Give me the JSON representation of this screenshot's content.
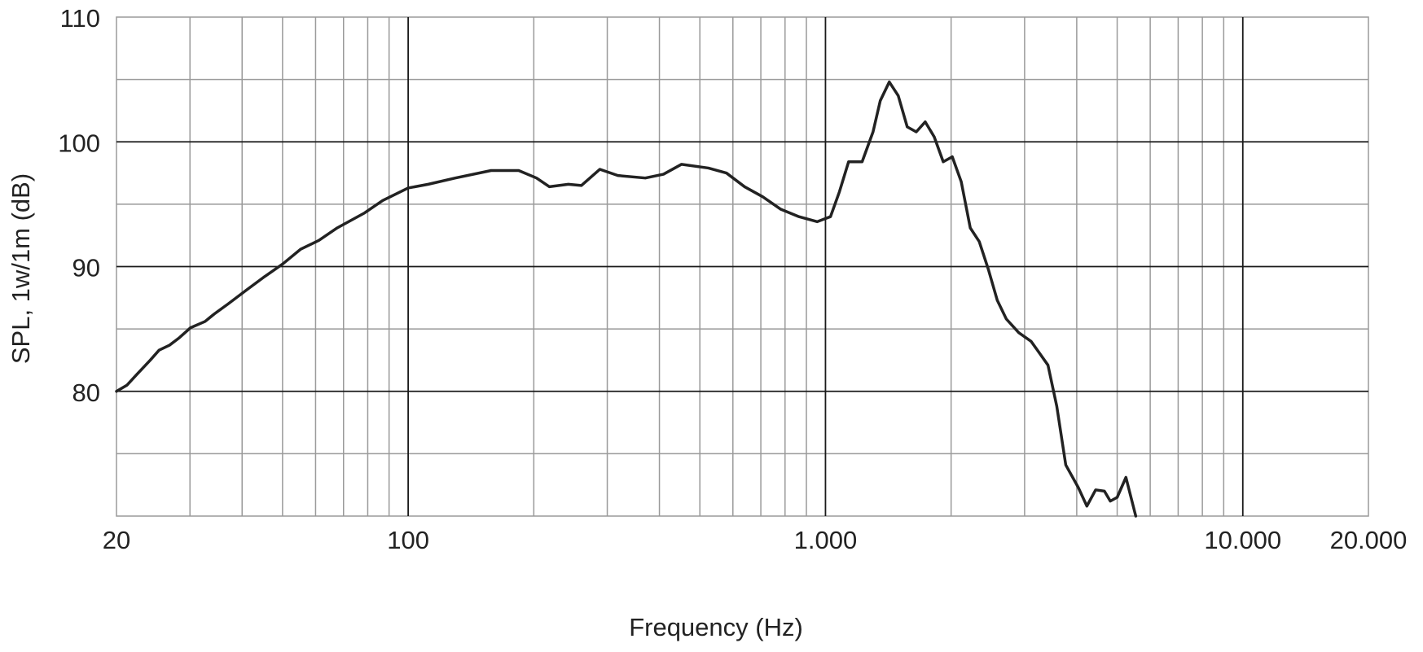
{
  "chart_data": {
    "type": "line",
    "xlabel": "Frequency (Hz)",
    "ylabel": "SPL, 1w/1m (dB)",
    "xscale": "log",
    "xlim": [
      20,
      20000
    ],
    "ylim": [
      70,
      110
    ],
    "xticks": [
      20,
      100,
      {
        "value": 1000,
        "label": "1.000"
      },
      {
        "value": 10000,
        "label": "10.000"
      },
      {
        "value": 20000,
        "label": "20.000"
      }
    ],
    "yticks": [
      80,
      90,
      100,
      110
    ],
    "xminor": [
      30,
      40,
      50,
      60,
      70,
      80,
      90,
      200,
      300,
      400,
      500,
      600,
      700,
      800,
      900,
      2000,
      3000,
      4000,
      5000,
      6000,
      7000,
      8000,
      9000
    ],
    "yminor": [
      75,
      85,
      95,
      105
    ],
    "grid": true,
    "color": "#222222",
    "x": [
      20,
      21.2,
      22.3,
      24.1,
      25.3,
      26.8,
      28.3,
      30.1,
      32.6,
      34.3,
      37.0,
      40.9,
      45.3,
      50.0,
      55.3,
      61.1,
      67.6,
      78.6,
      86.9,
      100,
      111.7,
      129.7,
      158,
      184,
      203,
      218,
      242,
      260,
      288,
      318,
      370,
      409,
      452,
      524,
      579,
      640,
      707,
      781,
      864,
      955,
      1028,
      1080,
      1136,
      1224,
      1300,
      1353,
      1422,
      1494,
      1570,
      1650,
      1734,
      1822,
      1915,
      2013,
      2115,
      2223,
      2336,
      2455,
      2580,
      2712,
      2905,
      3111,
      3413,
      3583,
      3765,
      4033,
      4230,
      4440,
      4660,
      4814,
      5000,
      5247,
      5540
    ],
    "values": [
      80.0,
      80.5,
      81.3,
      82.5,
      83.3,
      83.7,
      84.3,
      85.1,
      85.6,
      86.2,
      87.0,
      88.1,
      89.2,
      90.2,
      91.4,
      92.1,
      93.1,
      94.3,
      95.3,
      96.3,
      96.6,
      97.1,
      97.7,
      97.7,
      97.1,
      96.4,
      96.6,
      96.5,
      97.8,
      97.3,
      97.1,
      97.4,
      98.2,
      97.9,
      97.5,
      96.4,
      95.6,
      94.6,
      94.0,
      93.6,
      94.0,
      96.0,
      98.4,
      98.4,
      100.8,
      103.3,
      104.8,
      103.7,
      101.2,
      100.8,
      101.6,
      100.4,
      98.4,
      98.8,
      96.8,
      93.1,
      92.0,
      89.8,
      87.3,
      85.8,
      84.7,
      84.0,
      82.1,
      78.8,
      74.1,
      72.3,
      70.8,
      72.1,
      72.0,
      71.2,
      71.5,
      73.1,
      70.0
    ]
  }
}
